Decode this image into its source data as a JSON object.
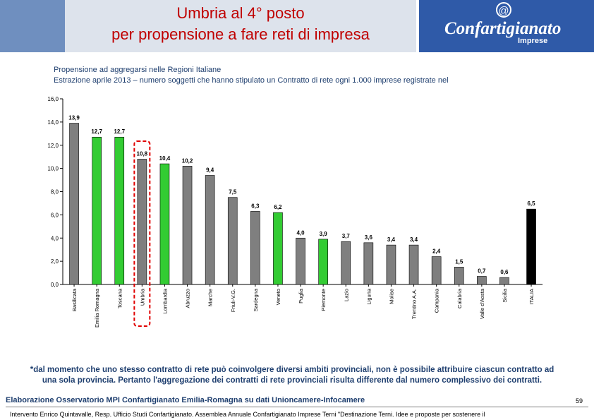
{
  "header": {
    "title_line1": "Umbria al 4° posto",
    "title_line2": "per propensione a fare reti di impresa",
    "logo_name": "Confartigianato",
    "logo_sub": "Imprese",
    "logo_symbol": "@"
  },
  "subtitle": {
    "line1": "Propensione ad aggregarsi nelle Regioni Italiane",
    "line2": "Estrazione aprile 2013 – numero soggetti  che hanno stipulato un Contratto di rete ogni 1.000 imprese registrate nel"
  },
  "colors": {
    "grey": "#7f7f7f",
    "green": "#33cc33",
    "black": "#000000",
    "highlight": "#e00000",
    "title": "#c00000"
  },
  "chart_data": {
    "type": "bar",
    "categories": [
      "Basilicata",
      "Emilia Romagna",
      "Toscana",
      "Umbria",
      "Lombardia",
      "Abruzzo",
      "Marche",
      "Friuli-V.G.",
      "Sardegna",
      "Veneto",
      "Puglia",
      "Piemonte",
      "Lazio",
      "Liguria",
      "Molise",
      "Trentino A.A.",
      "Campania",
      "Calabria",
      "Valle d'Aosta",
      "Sicilia",
      "ITALIA"
    ],
    "values": [
      13.9,
      12.7,
      12.7,
      10.8,
      10.4,
      10.2,
      9.4,
      7.5,
      6.3,
      6.2,
      4.0,
      3.9,
      3.7,
      3.6,
      3.4,
      3.4,
      2.4,
      1.5,
      0.7,
      0.6,
      6.5
    ],
    "value_labels": [
      "13,9",
      "12,7",
      "12,7",
      "10,8",
      "10,4",
      "10,2",
      "9,4",
      "7,5",
      "6,3",
      "6,2",
      "4,0",
      "3,9",
      "3,7",
      "3,6",
      "3,4",
      "3,4",
      "2,4",
      "1,5",
      "0,7",
      "0,6",
      "6,5"
    ],
    "bar_colors": [
      "grey",
      "green",
      "green",
      "grey",
      "green",
      "grey",
      "grey",
      "grey",
      "grey",
      "green",
      "grey",
      "green",
      "grey",
      "grey",
      "grey",
      "grey",
      "grey",
      "grey",
      "grey",
      "grey",
      "black"
    ],
    "highlighted_category": "Umbria",
    "ylim": [
      0,
      16
    ],
    "yticks": [
      "0,0",
      "2,0",
      "4,0",
      "6,0",
      "8,0",
      "10,0",
      "12,0",
      "14,0",
      "16,0"
    ],
    "grid": false
  },
  "note": {
    "line1": "*dal momento che uno stesso contratto di rete può coinvolgere diversi ambiti provinciali, non è possibile attribuire ciascun contratto ad",
    "line2": "una sola provincia. Pertanto l'aggregazione dei contratti di rete provinciali risulta differente dal numero complessivo dei contratti."
  },
  "source": "Elaborazione Osservatorio MPI Confartigianato Emilia-Romagna  su dati Unioncamere-Infocamere",
  "page_number": "59",
  "footer": "Intervento Enrico Quintavalle, Resp. Ufficio Studi Confartigianato. Assemblea Annuale Confartigianato Imprese Terni \"Destinazione Terni. Idee e proposte per sostenere il"
}
